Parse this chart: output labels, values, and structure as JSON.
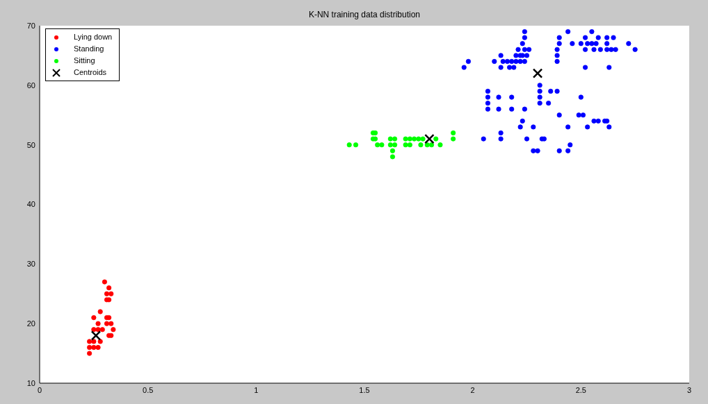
{
  "chart_data": {
    "type": "scatter",
    "title": "K-NN training data distribution",
    "xlim": [
      0,
      3
    ],
    "xticks": [
      0,
      0.5,
      1,
      1.5,
      2,
      2.5,
      3
    ],
    "ylim": [
      10,
      70
    ],
    "yticks": [
      10,
      20,
      30,
      40,
      50,
      60,
      70
    ],
    "grid": false,
    "legend": "top left",
    "series": [
      {
        "name": "Lying down",
        "color": "#ff0000",
        "marker": "circle",
        "x": [
          0.3,
          0.32,
          0.31,
          0.33,
          0.31,
          0.32,
          0.28,
          0.25,
          0.31,
          0.32,
          0.27,
          0.31,
          0.33,
          0.25,
          0.27,
          0.29,
          0.34,
          0.32,
          0.33,
          0.23,
          0.25,
          0.28,
          0.23,
          0.25,
          0.27,
          0.23
        ],
        "values": [
          27,
          26,
          25,
          25,
          24,
          24,
          22,
          21,
          21,
          21,
          20,
          20,
          20,
          19,
          19,
          19,
          19,
          18,
          18,
          17,
          17,
          17,
          16,
          16,
          16,
          15
        ]
      },
      {
        "name": "Standing",
        "color": "#0000ff",
        "marker": "circle",
        "x": [
          2.24,
          2.44,
          2.55,
          2.24,
          2.4,
          2.52,
          2.58,
          2.62,
          2.65,
          2.23,
          2.4,
          2.46,
          2.5,
          2.53,
          2.55,
          2.57,
          2.62,
          2.72,
          2.21,
          2.24,
          2.26,
          2.39,
          2.52,
          2.56,
          2.59,
          2.62,
          2.64,
          2.66,
          2.75,
          2.13,
          2.2,
          2.22,
          2.23,
          2.25,
          2.39,
          1.98,
          2.1,
          2.14,
          2.16,
          2.18,
          2.2,
          2.22,
          2.24,
          2.39,
          1.96,
          2.13,
          2.17,
          2.19,
          2.52,
          2.63,
          2.31,
          2.07,
          2.31,
          2.36,
          2.39,
          2.07,
          2.12,
          2.18,
          2.31,
          2.5,
          2.07,
          2.31,
          2.35,
          2.07,
          2.12,
          2.18,
          2.24,
          2.4,
          2.49,
          2.51,
          2.23,
          2.56,
          2.58,
          2.61,
          2.62,
          2.22,
          2.28,
          2.44,
          2.53,
          2.63,
          2.13,
          2.05,
          2.13,
          2.25,
          2.32,
          2.33,
          2.45,
          2.28,
          2.3,
          2.4,
          2.44
        ],
        "values": [
          69,
          69,
          69,
          68,
          68,
          68,
          68,
          68,
          68,
          67,
          67,
          67,
          67,
          67,
          67,
          67,
          67,
          67,
          66,
          66,
          66,
          66,
          66,
          66,
          66,
          66,
          66,
          66,
          66,
          65,
          65,
          65,
          65,
          65,
          65,
          64,
          64,
          64,
          64,
          64,
          64,
          64,
          64,
          64,
          63,
          63,
          63,
          63,
          63,
          63,
          60,
          59,
          59,
          59,
          59,
          58,
          58,
          58,
          58,
          58,
          57,
          57,
          57,
          56,
          56,
          56,
          56,
          55,
          55,
          55,
          54,
          54,
          54,
          54,
          54,
          53,
          53,
          53,
          53,
          53,
          52,
          51,
          51,
          51,
          51,
          51,
          50,
          49,
          49,
          49,
          49
        ]
      },
      {
        "name": "Sitting",
        "color": "#00ff00",
        "marker": "circle",
        "x": [
          1.43,
          1.46,
          1.54,
          1.55,
          1.54,
          1.55,
          1.56,
          1.58,
          1.62,
          1.64,
          1.62,
          1.64,
          1.63,
          1.63,
          1.69,
          1.71,
          1.69,
          1.71,
          1.73,
          1.75,
          1.77,
          1.76,
          1.79,
          1.81,
          1.83,
          1.85,
          1.91,
          1.91
        ],
        "values": [
          50,
          50,
          52,
          52,
          51,
          51,
          50,
          50,
          51,
          51,
          50,
          50,
          49,
          48,
          51,
          51,
          50,
          50,
          51,
          51,
          51,
          50,
          50,
          50,
          51,
          50,
          52,
          51
        ]
      },
      {
        "name": "Centroids",
        "color": "#000000",
        "marker": "cross",
        "x": [
          0.26,
          1.8,
          2.3
        ],
        "values": [
          18,
          51,
          62
        ]
      }
    ]
  }
}
